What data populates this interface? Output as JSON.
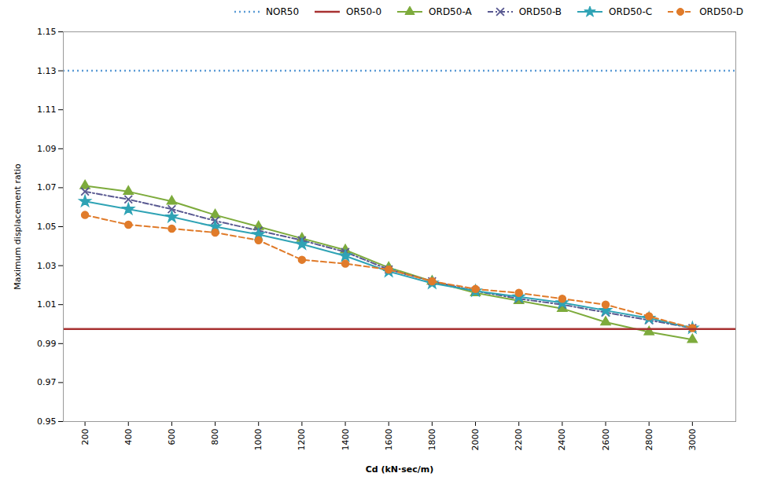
{
  "chart_data": {
    "type": "line",
    "x": [
      200,
      400,
      600,
      800,
      1000,
      1200,
      1400,
      1600,
      1800,
      2000,
      2200,
      2400,
      2600,
      2800,
      3000
    ],
    "series": [
      {
        "name": "NOR50",
        "type": "hline",
        "value": 1.13,
        "color": "#5b9bd5",
        "line_style": "dotted"
      },
      {
        "name": "OR50-0",
        "type": "hline",
        "value": 0.9975,
        "color": "#a83232",
        "line_style": "solid"
      },
      {
        "name": "ORD50-A",
        "color": "#7dab3c",
        "marker": "triangle",
        "line_style": "solid",
        "values": [
          1.071,
          1.068,
          1.063,
          1.056,
          1.05,
          1.044,
          1.038,
          1.029,
          1.022,
          1.016,
          1.012,
          1.008,
          1.001,
          0.996,
          0.992
        ]
      },
      {
        "name": "ORD50-B",
        "color": "#595991",
        "marker": "x",
        "line_style": "dashdot",
        "values": [
          1.068,
          1.064,
          1.059,
          1.053,
          1.048,
          1.043,
          1.037,
          1.028,
          1.022,
          1.017,
          1.013,
          1.01,
          1.006,
          1.002,
          0.998
        ]
      },
      {
        "name": "ORD50-C",
        "color": "#2fa3b5",
        "marker": "star",
        "line_style": "solid",
        "values": [
          1.063,
          1.059,
          1.055,
          1.05,
          1.046,
          1.041,
          1.035,
          1.027,
          1.021,
          1.017,
          1.014,
          1.011,
          1.007,
          1.003,
          0.998
        ]
      },
      {
        "name": "ORD50-D",
        "color": "#e07b2a",
        "marker": "circle",
        "line_style": "dashed",
        "values": [
          1.056,
          1.051,
          1.049,
          1.047,
          1.043,
          1.033,
          1.031,
          1.028,
          1.022,
          1.018,
          1.016,
          1.013,
          1.01,
          1.004,
          0.998
        ]
      }
    ],
    "xlabel": "Cd (kN·sec/m)",
    "ylabel": "Maximum displacement ratio",
    "xlim": [
      100,
      3200
    ],
    "xticks": [
      200,
      400,
      600,
      800,
      1000,
      1200,
      1400,
      1600,
      1800,
      2000,
      2200,
      2400,
      2600,
      2800,
      3000
    ],
    "ylim": [
      0.95,
      1.15
    ],
    "yticks": [
      0.95,
      0.97,
      0.99,
      1.01,
      1.03,
      1.05,
      1.07,
      1.09,
      1.11,
      1.13,
      1.15
    ],
    "legend": "upper right",
    "grid": false
  }
}
